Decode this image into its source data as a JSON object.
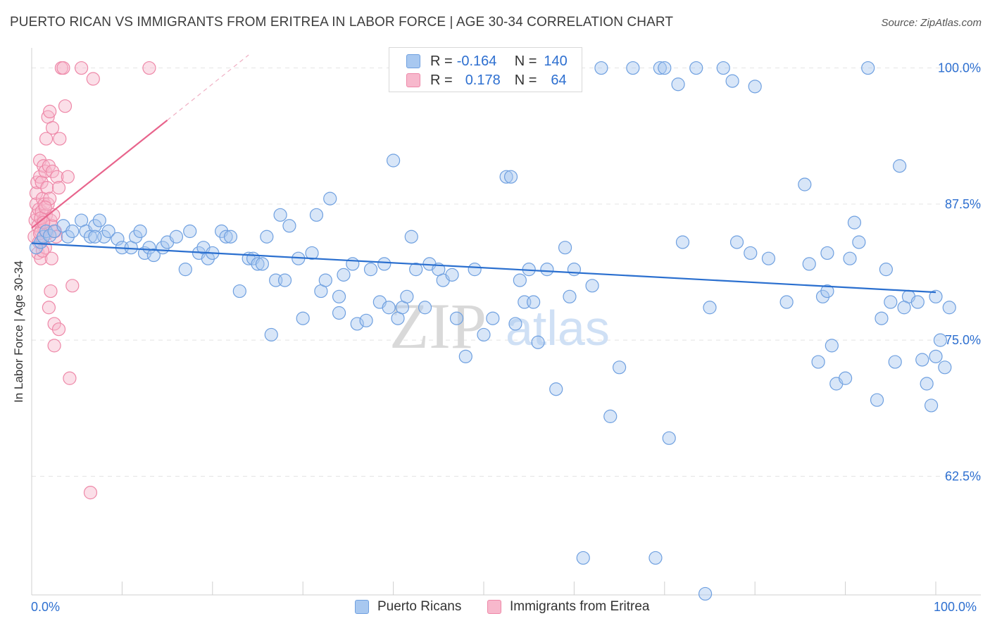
{
  "header": {
    "title": "PUERTO RICAN VS IMMIGRANTS FROM ERITREA IN LABOR FORCE | AGE 30-34 CORRELATION CHART",
    "source": "Source: ZipAtlas.com"
  },
  "legend": {
    "rows": [
      {
        "r_label": "R = ",
        "r_value": "-0.164",
        "n_label": "N = ",
        "n_value": "140"
      },
      {
        "r_label": "R = ",
        "r_value": "0.178",
        "n_label": "N = ",
        "n_value": "64"
      }
    ],
    "bottom": [
      "Puerto Ricans",
      "Immigrants from Eritrea"
    ]
  },
  "watermark": {
    "zip": "ZIP",
    "atlas": "atlas"
  },
  "colors": {
    "blue_fill": "#a8c8f0",
    "blue_stroke": "#6fa0e0",
    "blue_line": "#2a6fcf",
    "pink_fill": "#f7b8cc",
    "pink_stroke": "#ee88a8",
    "pink_line": "#e8648c",
    "axis_text": "#2d6fd0",
    "grid": "#e4e4e4"
  },
  "chart_data": {
    "type": "scatter",
    "title": "PUERTO RICAN VS IMMIGRANTS FROM ERITREA IN LABOR FORCE | AGE 30-34 CORRELATION CHART",
    "xlabel": "",
    "ylabel": "In Labor Force | Age 30-34",
    "xlim": [
      0,
      100
    ],
    "ylim": [
      51.6,
      101.2
    ],
    "x_tick_labels": [
      "0.0%",
      "100.0%"
    ],
    "y_ticks": [
      62.5,
      75.0,
      87.5,
      100.0
    ],
    "y_tick_labels": [
      "62.5%",
      "75.0%",
      "87.5%",
      "100.0%"
    ],
    "grid": true,
    "legend_position": "top-center",
    "series": [
      {
        "name": "Puerto Ricans",
        "r": -0.164,
        "n": 140,
        "trend": {
          "x": [
            0,
            100
          ],
          "y": [
            83.9,
            79.4
          ]
        },
        "points": [
          [
            0.5,
            83.5
          ],
          [
            1.0,
            84.0
          ],
          [
            1.3,
            84.5
          ],
          [
            1.6,
            85.0
          ],
          [
            2.0,
            84.6
          ],
          [
            2.5,
            85.0
          ],
          [
            3.5,
            85.5
          ],
          [
            4.0,
            84.5
          ],
          [
            4.5,
            85.0
          ],
          [
            5.5,
            86.0
          ],
          [
            6.0,
            85.0
          ],
          [
            6.5,
            84.5
          ],
          [
            7.0,
            85.5
          ],
          [
            7.5,
            86.0
          ],
          [
            8.0,
            84.5
          ],
          [
            8.5,
            85.0
          ],
          [
            9.5,
            84.3
          ],
          [
            10.0,
            83.5
          ],
          [
            11.0,
            83.5
          ],
          [
            11.5,
            84.5
          ],
          [
            12.5,
            83.0
          ],
          [
            13.0,
            83.5
          ],
          [
            13.5,
            82.8
          ],
          [
            14.5,
            83.5
          ],
          [
            15.0,
            84.0
          ],
          [
            16.0,
            84.5
          ],
          [
            17.0,
            81.5
          ],
          [
            17.5,
            85.0
          ],
          [
            18.5,
            83.0
          ],
          [
            19.0,
            83.5
          ],
          [
            19.5,
            82.5
          ],
          [
            20.0,
            83.0
          ],
          [
            21.0,
            85.0
          ],
          [
            21.5,
            84.5
          ],
          [
            22.0,
            84.5
          ],
          [
            23.0,
            79.5
          ],
          [
            24.0,
            82.5
          ],
          [
            24.5,
            82.5
          ],
          [
            25.0,
            82.0
          ],
          [
            25.5,
            82.0
          ],
          [
            26.0,
            84.5
          ],
          [
            26.5,
            75.5
          ],
          [
            27.0,
            80.5
          ],
          [
            27.5,
            86.5
          ],
          [
            28.0,
            80.5
          ],
          [
            28.5,
            85.5
          ],
          [
            29.5,
            82.5
          ],
          [
            30.0,
            77.0
          ],
          [
            31.0,
            83.0
          ],
          [
            31.5,
            86.5
          ],
          [
            32.0,
            79.5
          ],
          [
            32.5,
            80.5
          ],
          [
            33.0,
            88.0
          ],
          [
            34.0,
            77.5
          ],
          [
            34.5,
            81.0
          ],
          [
            35.5,
            82.0
          ],
          [
            36.0,
            76.5
          ],
          [
            37.0,
            76.8
          ],
          [
            37.5,
            81.5
          ],
          [
            38.5,
            78.5
          ],
          [
            39.0,
            82.0
          ],
          [
            39.5,
            78.0
          ],
          [
            40.0,
            91.5
          ],
          [
            40.5,
            77.0
          ],
          [
            41.0,
            78.0
          ],
          [
            42.0,
            84.5
          ],
          [
            42.5,
            81.5
          ],
          [
            43.5,
            78.0
          ],
          [
            44.0,
            82.0
          ],
          [
            45.0,
            81.5
          ],
          [
            45.5,
            80.5
          ],
          [
            46.0,
            100.0
          ],
          [
            46.5,
            81.0
          ],
          [
            47.0,
            77.0
          ],
          [
            48.0,
            73.5
          ],
          [
            49.0,
            81.5
          ],
          [
            50.0,
            75.5
          ],
          [
            51.0,
            77.0
          ],
          [
            52.5,
            90.0
          ],
          [
            53.0,
            90.0
          ],
          [
            53.5,
            76.5
          ],
          [
            54.0,
            80.5
          ],
          [
            54.5,
            78.5
          ],
          [
            55.0,
            81.5
          ],
          [
            55.5,
            78.5
          ],
          [
            56.0,
            74.8
          ],
          [
            57.0,
            81.5
          ],
          [
            58.0,
            70.5
          ],
          [
            59.0,
            83.5
          ],
          [
            60.0,
            81.5
          ],
          [
            61.0,
            55.0
          ],
          [
            62.0,
            80.0
          ],
          [
            63.0,
            100.0
          ],
          [
            64.0,
            68.0
          ],
          [
            65.0,
            72.5
          ],
          [
            66.5,
            100.0
          ],
          [
            69.0,
            55.0
          ],
          [
            69.5,
            100.0
          ],
          [
            70.5,
            66.0
          ],
          [
            71.5,
            98.5
          ],
          [
            72.0,
            84.0
          ],
          [
            73.5,
            100.0
          ],
          [
            74.5,
            51.7
          ],
          [
            75.0,
            78.0
          ],
          [
            76.5,
            100.0
          ],
          [
            77.5,
            98.8
          ],
          [
            78.0,
            84.0
          ],
          [
            79.5,
            83.0
          ],
          [
            80.0,
            98.3
          ],
          [
            81.5,
            82.5
          ],
          [
            83.5,
            78.5
          ],
          [
            85.5,
            89.3
          ],
          [
            86.0,
            82.0
          ],
          [
            87.0,
            73.0
          ],
          [
            87.5,
            79.0
          ],
          [
            88.0,
            83.0
          ],
          [
            88.5,
            74.5
          ],
          [
            89.0,
            71.0
          ],
          [
            90.0,
            71.5
          ],
          [
            90.5,
            82.5
          ],
          [
            91.0,
            85.8
          ],
          [
            91.5,
            84.0
          ],
          [
            92.5,
            100.0
          ],
          [
            93.5,
            69.5
          ],
          [
            94.0,
            77.0
          ],
          [
            94.5,
            81.5
          ],
          [
            95.5,
            73.0
          ],
          [
            96.0,
            91.0
          ],
          [
            97.0,
            79.0
          ],
          [
            98.0,
            78.5
          ],
          [
            98.5,
            73.2
          ],
          [
            99.0,
            71.0
          ],
          [
            99.5,
            69.0
          ],
          [
            100.0,
            73.5
          ],
          [
            100.5,
            75.0
          ],
          [
            101.0,
            72.5
          ],
          [
            101.5,
            78.0
          ],
          [
            95.0,
            78.5
          ],
          [
            96.5,
            78.0
          ],
          [
            100.0,
            79.0
          ],
          [
            70.0,
            100.0
          ],
          [
            49.0,
            100.0
          ],
          [
            88.0,
            79.5
          ],
          [
            59.5,
            79.0
          ],
          [
            34.0,
            79.0
          ],
          [
            41.5,
            79.0
          ],
          [
            7.0,
            84.5
          ],
          [
            12.0,
            85.0
          ]
        ]
      },
      {
        "name": "Immigrants from Eritrea",
        "r": 0.178,
        "n": 64,
        "trend": {
          "x": [
            0,
            15
          ],
          "y": [
            85.3,
            95.2
          ]
        },
        "trend_dashed": {
          "x": [
            15,
            24
          ],
          "y": [
            95.2,
            101.2
          ]
        },
        "points": [
          [
            0.3,
            84.5
          ],
          [
            0.4,
            86.0
          ],
          [
            0.5,
            87.5
          ],
          [
            0.5,
            88.5
          ],
          [
            0.6,
            86.5
          ],
          [
            0.6,
            89.5
          ],
          [
            0.7,
            85.5
          ],
          [
            0.7,
            83.0
          ],
          [
            0.8,
            84.0
          ],
          [
            0.8,
            87.0
          ],
          [
            0.9,
            91.5
          ],
          [
            0.9,
            90.0
          ],
          [
            1.0,
            85.0
          ],
          [
            1.0,
            82.5
          ],
          [
            1.1,
            86.8
          ],
          [
            1.1,
            89.5
          ],
          [
            1.2,
            88.0
          ],
          [
            1.2,
            84.2
          ],
          [
            1.3,
            91.0
          ],
          [
            1.3,
            86.0
          ],
          [
            1.4,
            87.5
          ],
          [
            1.4,
            85.2
          ],
          [
            1.5,
            90.5
          ],
          [
            1.5,
            83.5
          ],
          [
            1.6,
            93.5
          ],
          [
            1.6,
            86.5
          ],
          [
            1.7,
            89.0
          ],
          [
            1.7,
            84.8
          ],
          [
            1.8,
            95.5
          ],
          [
            1.8,
            87.5
          ],
          [
            1.9,
            91.0
          ],
          [
            1.9,
            78.0
          ],
          [
            2.0,
            96.0
          ],
          [
            2.0,
            88.0
          ],
          [
            2.1,
            86.0
          ],
          [
            2.1,
            79.5
          ],
          [
            2.2,
            85.5
          ],
          [
            2.2,
            82.5
          ],
          [
            2.3,
            90.5
          ],
          [
            2.3,
            94.5
          ],
          [
            2.4,
            86.5
          ],
          [
            2.5,
            76.5
          ],
          [
            2.5,
            74.5
          ],
          [
            2.6,
            85.0
          ],
          [
            2.8,
            90.0
          ],
          [
            3.0,
            89.0
          ],
          [
            3.0,
            76.0
          ],
          [
            3.1,
            93.5
          ],
          [
            3.3,
            100.0
          ],
          [
            3.5,
            100.0
          ],
          [
            3.7,
            96.5
          ],
          [
            4.0,
            90.0
          ],
          [
            4.2,
            71.5
          ],
          [
            4.5,
            80.0
          ],
          [
            5.5,
            100.0
          ],
          [
            6.5,
            61.0
          ],
          [
            6.8,
            99.0
          ],
          [
            13.0,
            100.0
          ],
          [
            1.0,
            86.2
          ],
          [
            0.9,
            84.8
          ],
          [
            1.2,
            83.2
          ],
          [
            1.3,
            85.8
          ],
          [
            2.7,
            84.5
          ],
          [
            1.5,
            87.2
          ]
        ]
      }
    ]
  }
}
